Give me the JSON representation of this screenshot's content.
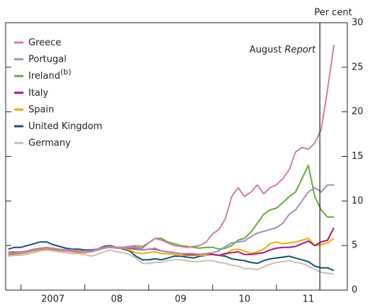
{
  "chart_data": {
    "type": "line",
    "y_axis_label": "Per cent",
    "annotation": {
      "x": 2011.68,
      "text": "August",
      "text_italic": "Report"
    },
    "legend": "upper left",
    "xlim": [
      2006.76,
      2012.11
    ],
    "xtick_marks": [
      2007,
      2008,
      2009,
      2010,
      2011
    ],
    "xticks": [
      {
        "value": 2007.5,
        "label": "2007"
      },
      {
        "value": 2008.5,
        "label": "08"
      },
      {
        "value": 2009.5,
        "label": "09"
      },
      {
        "value": 2010.5,
        "label": "10"
      },
      {
        "value": 2011.5,
        "label": "11"
      }
    ],
    "ylim": [
      0,
      30
    ],
    "yticks": [
      0,
      5,
      10,
      15,
      20,
      25,
      30
    ],
    "x": [
      2006.8,
      2006.9,
      2007.0,
      2007.1,
      2007.2,
      2007.3,
      2007.4,
      2007.5,
      2007.6,
      2007.7,
      2007.8,
      2007.9,
      2008.0,
      2008.1,
      2008.2,
      2008.3,
      2008.4,
      2008.5,
      2008.6,
      2008.7,
      2008.8,
      2008.9,
      2009.0,
      2009.1,
      2009.2,
      2009.3,
      2009.4,
      2009.5,
      2009.6,
      2009.7,
      2009.8,
      2009.9,
      2010.0,
      2010.1,
      2010.2,
      2010.3,
      2010.4,
      2010.5,
      2010.6,
      2010.7,
      2010.8,
      2010.9,
      2011.0,
      2011.1,
      2011.2,
      2011.3,
      2011.4,
      2011.5,
      2011.6,
      2011.7,
      2011.8,
      2011.9
    ],
    "series": [
      {
        "name": "Greece",
        "color": "#d57aa7",
        "values": [
          4.3,
          4.3,
          4.3,
          4.4,
          4.6,
          4.7,
          4.8,
          4.7,
          4.6,
          4.5,
          4.5,
          4.4,
          4.4,
          4.4,
          4.6,
          4.8,
          4.9,
          4.8,
          4.8,
          4.9,
          5.0,
          4.9,
          5.3,
          5.8,
          5.6,
          5.3,
          5.0,
          4.9,
          4.8,
          4.9,
          5.0,
          5.4,
          6.3,
          6.8,
          8.0,
          10.5,
          11.5,
          10.5,
          11.0,
          11.8,
          10.8,
          11.5,
          11.8,
          12.5,
          13.5,
          15.5,
          16.0,
          15.8,
          16.5,
          18.0,
          22.5,
          27.5
        ]
      },
      {
        "name": "Portugal",
        "color": "#9d8ec6",
        "values": [
          4.1,
          4.1,
          4.2,
          4.3,
          4.5,
          4.6,
          4.7,
          4.6,
          4.5,
          4.4,
          4.4,
          4.3,
          4.3,
          4.3,
          4.5,
          4.7,
          4.8,
          4.7,
          4.7,
          4.8,
          4.7,
          4.5,
          4.6,
          4.7,
          4.4,
          4.3,
          4.2,
          4.1,
          4.1,
          4.1,
          4.0,
          4.1,
          4.2,
          4.4,
          4.9,
          5.3,
          5.4,
          5.5,
          6.0,
          6.4,
          6.6,
          6.8,
          7.0,
          7.5,
          8.5,
          9.0,
          10.0,
          11.0,
          11.5,
          11.0,
          11.8,
          11.8
        ]
      },
      {
        "name": "Ireland",
        "footnote": "(b)",
        "color": "#5fb030",
        "values": [
          4.0,
          4.1,
          4.2,
          4.3,
          4.5,
          4.6,
          4.7,
          4.6,
          4.5,
          4.5,
          4.4,
          4.3,
          4.3,
          4.3,
          4.5,
          4.7,
          4.9,
          4.8,
          4.8,
          4.9,
          4.8,
          4.7,
          5.3,
          5.8,
          5.8,
          5.4,
          5.2,
          5.0,
          4.9,
          4.8,
          4.7,
          4.8,
          4.8,
          4.6,
          4.7,
          5.0,
          5.6,
          5.8,
          6.5,
          7.5,
          8.5,
          9.0,
          9.2,
          9.8,
          10.5,
          11.0,
          12.5,
          14.0,
          10.5,
          9.0,
          8.2,
          8.2
        ]
      },
      {
        "name": "Italy",
        "color": "#b0137e",
        "values": [
          4.1,
          4.2,
          4.2,
          4.3,
          4.5,
          4.6,
          4.7,
          4.6,
          4.5,
          4.5,
          4.4,
          4.3,
          4.3,
          4.4,
          4.6,
          4.8,
          4.9,
          4.8,
          4.8,
          4.7,
          4.6,
          4.5,
          4.6,
          4.6,
          4.4,
          4.3,
          4.2,
          4.1,
          4.0,
          4.0,
          4.0,
          4.1,
          4.0,
          3.9,
          4.1,
          4.2,
          4.3,
          4.0,
          4.0,
          4.1,
          4.2,
          4.5,
          4.7,
          4.8,
          4.8,
          4.9,
          5.2,
          5.5,
          5.0,
          5.4,
          5.6,
          7.0
        ]
      },
      {
        "name": "Spain",
        "color": "#f5a800",
        "values": [
          4.0,
          4.0,
          4.1,
          4.2,
          4.4,
          4.5,
          4.6,
          4.5,
          4.4,
          4.4,
          4.3,
          4.2,
          4.2,
          4.3,
          4.5,
          4.7,
          4.8,
          4.7,
          4.7,
          4.5,
          4.2,
          4.1,
          4.2,
          4.3,
          4.1,
          4.1,
          4.0,
          3.9,
          3.9,
          3.9,
          3.9,
          3.9,
          4.0,
          3.9,
          4.0,
          4.5,
          4.6,
          4.4,
          4.1,
          4.3,
          4.6,
          5.2,
          5.4,
          5.2,
          5.3,
          5.4,
          5.6,
          5.8,
          5.0,
          5.1,
          5.3,
          5.8
        ]
      },
      {
        "name": "United Kingdom",
        "color": "#0a5478",
        "values": [
          4.6,
          4.8,
          4.8,
          5.0,
          5.2,
          5.4,
          5.4,
          5.1,
          4.9,
          4.7,
          4.6,
          4.6,
          4.5,
          4.5,
          4.6,
          4.9,
          5.0,
          4.8,
          4.6,
          4.4,
          3.8,
          3.4,
          3.4,
          3.5,
          3.4,
          3.6,
          3.8,
          3.8,
          3.7,
          3.6,
          3.8,
          3.9,
          4.0,
          3.9,
          3.8,
          3.5,
          3.4,
          3.3,
          3.1,
          3.0,
          3.3,
          3.5,
          3.6,
          3.7,
          3.8,
          3.6,
          3.4,
          3.2,
          2.7,
          2.5,
          2.5,
          2.2
        ]
      },
      {
        "name": "Germany",
        "color": "#cbbfae",
        "values": [
          3.8,
          3.9,
          3.9,
          4.0,
          4.2,
          4.4,
          4.5,
          4.4,
          4.3,
          4.2,
          4.1,
          4.1,
          4.0,
          3.8,
          4.0,
          4.3,
          4.5,
          4.3,
          4.2,
          4.0,
          3.6,
          3.0,
          3.0,
          3.1,
          3.1,
          3.3,
          3.4,
          3.4,
          3.3,
          3.2,
          3.2,
          3.3,
          3.3,
          3.1,
          3.0,
          2.8,
          2.7,
          2.4,
          2.4,
          2.3,
          2.6,
          2.9,
          3.1,
          3.2,
          3.3,
          3.1,
          3.0,
          2.7,
          2.3,
          2.0,
          1.9,
          1.8
        ]
      }
    ]
  }
}
